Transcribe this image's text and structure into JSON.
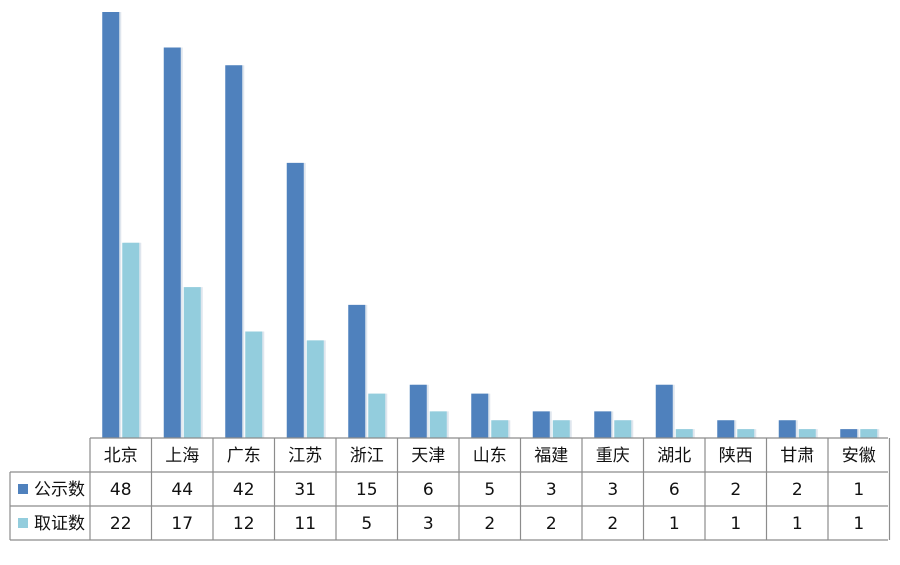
{
  "chart_data": {
    "type": "bar",
    "categories": [
      "北京",
      "上海",
      "广东",
      "江苏",
      "浙江",
      "天津",
      "山东",
      "福建",
      "重庆",
      "湖北",
      "陕西",
      "甘肃",
      "安徽"
    ],
    "series": [
      {
        "name": "公示数",
        "color": "#4F81BD",
        "values": [
          48,
          44,
          42,
          31,
          15,
          6,
          5,
          3,
          3,
          6,
          2,
          2,
          1
        ]
      },
      {
        "name": "取证数",
        "color": "#93CDDD",
        "values": [
          22,
          17,
          12,
          11,
          5,
          3,
          2,
          2,
          2,
          1,
          1,
          1,
          1
        ]
      }
    ],
    "ylim": [
      0,
      48
    ],
    "grid": false,
    "data_table": true
  }
}
